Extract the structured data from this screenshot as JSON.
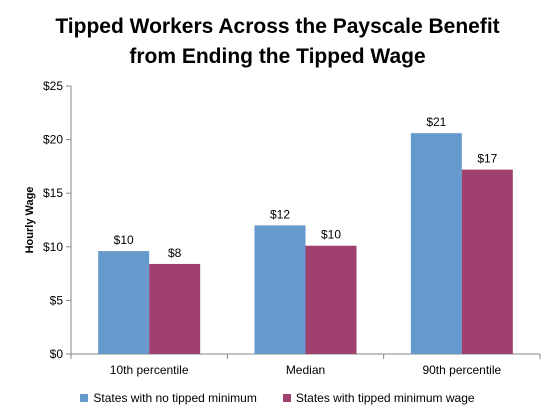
{
  "chart_data": {
    "type": "bar",
    "title_line1": "Tipped Workers Across the Payscale Benefit",
    "title_line2": "from Ending the Tipped Wage",
    "ylabel": "Hourly Wage",
    "xlabel": "",
    "ylim": [
      0,
      25
    ],
    "yticks": [
      {
        "value": 0,
        "label": "$0"
      },
      {
        "value": 5,
        "label": "$5"
      },
      {
        "value": 10,
        "label": "$10"
      },
      {
        "value": 15,
        "label": "$15"
      },
      {
        "value": 20,
        "label": "$20"
      },
      {
        "value": 25,
        "label": "$25"
      }
    ],
    "categories": [
      "10th percentile",
      "Median",
      "90th percentile"
    ],
    "series": [
      {
        "name": "States with no tipped minimum",
        "color": "#6699cc",
        "values": [
          9.6,
          12.0,
          20.6
        ],
        "labels": [
          "$10",
          "$12",
          "$21"
        ]
      },
      {
        "name": "States with tipped minimum wage",
        "color": "#a0406f",
        "values": [
          8.4,
          10.1,
          17.2
        ],
        "labels": [
          "$8",
          "$10",
          "$17"
        ]
      }
    ],
    "grid": false,
    "legend_position": "bottom"
  }
}
